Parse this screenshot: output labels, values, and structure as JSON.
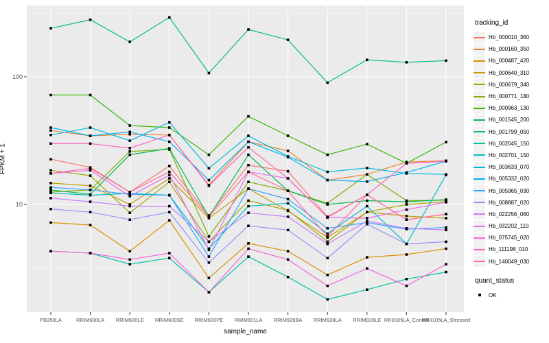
{
  "figure": {
    "background": "#FFFFFF"
  },
  "colors": {
    "panel_bg": "#EBEBEB",
    "grid": "#FFFFFF",
    "axis_text": "#4D4D4D",
    "tick": "#333333",
    "legend_key_bg": "#F2F2F2",
    "point": "#000000"
  },
  "chart_data": {
    "type": "line",
    "x_type": "categorical",
    "y_scale": "log10",
    "title": "",
    "xlabel": "sample_name",
    "ylabel": "FPKM + 1",
    "y_ticks": [
      100,
      10
    ],
    "y_minor_ticks": [
      316.2,
      31.62,
      3.162
    ],
    "ylim": [
      1.43,
      362
    ],
    "grid": true,
    "legend_position": "right",
    "legend_title": "tracking_id",
    "point_shape": "filled-square",
    "categories": [
      "PB350LA",
      "RRIM600LA",
      "RRIM600LE",
      "RRIM600SE",
      "RRIM600PE",
      "RRIM901LA",
      "RRIM928BA",
      "RRIM928LA",
      "RRIM928LE",
      "RRII105LA_Control",
      "RRII105LA_Stressed"
    ],
    "series": [
      {
        "name": "Hb_000010_360",
        "color": "#F8766D",
        "values": [
          22.6,
          19.5,
          12.5,
          20.0,
          8.2,
          20.3,
          18.2,
          8.0,
          11.9,
          7.6,
          8.4
        ]
      },
      {
        "name": "Hb_000160_350",
        "color": "#EA8331",
        "values": [
          38.0,
          34.5,
          35.5,
          35.0,
          14.2,
          31.0,
          26.3,
          15.5,
          17.2,
          21.5,
          22.0
        ]
      },
      {
        "name": "Hb_000487_420",
        "color": "#D89000",
        "values": [
          7.2,
          6.9,
          4.3,
          7.5,
          2.65,
          4.95,
          4.3,
          2.8,
          3.85,
          4.05,
          4.5
        ]
      },
      {
        "name": "Hb_000640_310",
        "color": "#C09B00",
        "values": [
          14.7,
          14.0,
          10.0,
          16.0,
          7.8,
          13.3,
          8.9,
          5.5,
          8.7,
          8.1,
          7.8
        ]
      },
      {
        "name": "Hb_000679_340",
        "color": "#A3A500",
        "values": [
          18.5,
          16.8,
          8.6,
          15.0,
          5.1,
          10.7,
          9.0,
          5.1,
          8.7,
          10.0,
          10.5
        ]
      },
      {
        "name": "Hb_000771_180",
        "color": "#7CAE00",
        "values": [
          12.5,
          13.0,
          26.0,
          27.0,
          5.6,
          15.0,
          12.8,
          10.2,
          17.2,
          10.7,
          10.8
        ]
      },
      {
        "name": "Hb_000963_130",
        "color": "#39B600",
        "values": [
          72.0,
          72.0,
          41.5,
          40.0,
          24.5,
          49.0,
          34.5,
          24.5,
          29.7,
          21.0,
          30.8
        ]
      },
      {
        "name": "Hb_001545_200",
        "color": "#00BB4E",
        "values": [
          13.0,
          12.0,
          24.5,
          27.5,
          8.0,
          24.5,
          12.8,
          10.0,
          10.7,
          10.5,
          10.9
        ]
      },
      {
        "name": "Hb_001799_050",
        "color": "#00BF7D",
        "values": [
          240,
          280,
          188,
          292,
          107,
          235,
          195,
          90,
          136,
          130,
          134
        ]
      },
      {
        "name": "Hb_002045_150",
        "color": "#00C1A3",
        "values": [
          4.3,
          4.15,
          3.4,
          3.8,
          2.05,
          3.9,
          2.7,
          1.8,
          2.15,
          2.6,
          2.95
        ]
      },
      {
        "name": "Hb_002701_150",
        "color": "#00BFC4",
        "values": [
          12.3,
          11.8,
          12.2,
          11.8,
          4.5,
          9.7,
          10.2,
          5.9,
          9.7,
          4.9,
          17.0
        ]
      },
      {
        "name": "Hb_003633_070",
        "color": "#00BAE0",
        "values": [
          35.0,
          40.0,
          31.6,
          44.0,
          19.2,
          34.5,
          23.8,
          18.0,
          19.3,
          17.5,
          17.2
        ]
      },
      {
        "name": "Hb_005332_020",
        "color": "#00B0F6",
        "values": [
          40.0,
          34.5,
          37.0,
          31.0,
          15.5,
          31.0,
          23.5,
          15.5,
          15.1,
          17.8,
          21.8
        ]
      },
      {
        "name": "Hb_005965_030",
        "color": "#35A2FF",
        "values": [
          13.6,
          13.0,
          12.0,
          11.8,
          3.9,
          13.3,
          11.0,
          6.5,
          7.2,
          6.4,
          6.6
        ]
      },
      {
        "name": "Hb_008887_020",
        "color": "#9590FF",
        "values": [
          9.2,
          8.7,
          7.6,
          8.7,
          3.5,
          6.8,
          6.3,
          3.8,
          7.0,
          4.9,
          5.1
        ]
      },
      {
        "name": "Hb_022256_060",
        "color": "#C77CFF",
        "values": [
          11.2,
          10.5,
          9.7,
          9.7,
          5.1,
          8.6,
          8.0,
          4.9,
          7.4,
          6.5,
          6.3
        ]
      },
      {
        "name": "Hb_032202_110",
        "color": "#E76BF3",
        "values": [
          17.5,
          18.5,
          11.6,
          17.0,
          4.4,
          18.0,
          16.0,
          7.9,
          7.8,
          9.1,
          10.4
        ]
      },
      {
        "name": "Hb_075745_020",
        "color": "#FA62DB",
        "values": [
          4.3,
          4.15,
          3.7,
          4.15,
          2.05,
          4.5,
          3.7,
          2.3,
          3.15,
          2.3,
          3.4
        ]
      },
      {
        "name": "Hb_111198_010",
        "color": "#FF62BC",
        "values": [
          30.0,
          30.0,
          27.6,
          35.0,
          14.0,
          28.0,
          16.0,
          7.9,
          11.9,
          21.0,
          21.8
        ]
      },
      {
        "name": "Hb_140049_030",
        "color": "#FF6A98",
        "values": [
          17.5,
          19.2,
          12.5,
          18.0,
          8.0,
          18.0,
          12.8,
          5.6,
          11.9,
          7.6,
          8.4
        ]
      }
    ],
    "quant_status": {
      "title": "quant_status",
      "items": [
        {
          "label": "OK",
          "shape": "filled-square",
          "color": "#000000"
        }
      ]
    }
  }
}
